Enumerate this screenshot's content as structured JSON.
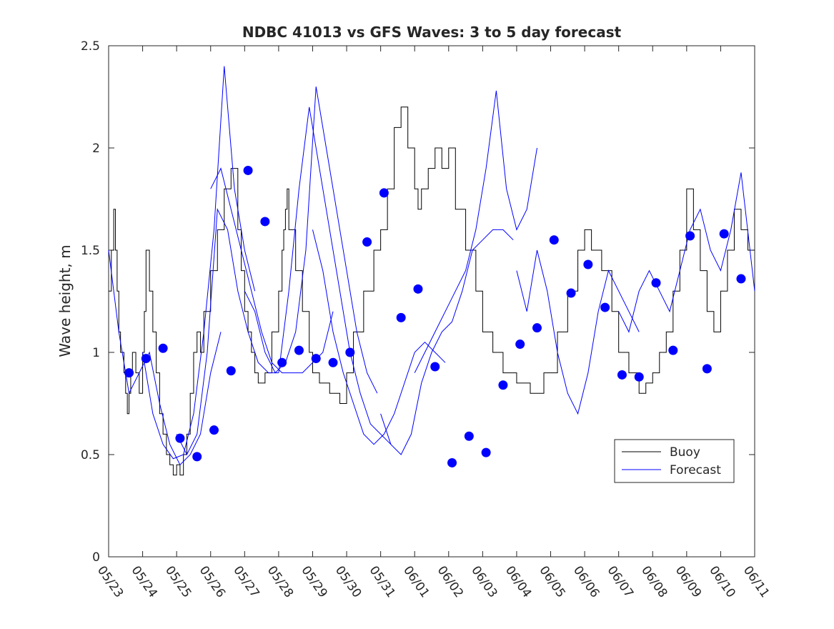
{
  "chart_data": {
    "type": "line",
    "title": "NDBC 41013 vs GFS Waves: 3 to 5 day forecast",
    "xlabel": "",
    "ylabel": "Wave height, m",
    "xlim": [
      0,
      19
    ],
    "ylim": [
      0,
      2.5
    ],
    "x_tick_labels": [
      "05/23",
      "05/24",
      "05/25",
      "05/26",
      "05/27",
      "05/28",
      "05/29",
      "05/30",
      "05/31",
      "06/01",
      "06/02",
      "06/03",
      "06/04",
      "06/05",
      "06/06",
      "06/07",
      "06/08",
      "06/09",
      "06/10",
      "06/11"
    ],
    "y_ticks": [
      0,
      0.5,
      1,
      1.5,
      2,
      2.5
    ],
    "y_tick_labels": [
      "0",
      "0.5",
      "1",
      "1.5",
      "2",
      "2.5"
    ],
    "grid": false,
    "legend_position": "lower-right",
    "legend": [
      {
        "label": "Buoy",
        "color": "#000000"
      },
      {
        "label": "Forecast",
        "color": "#0000ff"
      }
    ],
    "colors": {
      "buoy": "#000000",
      "forecast": "#0000ff",
      "markers": "#0000ff"
    },
    "series": [
      {
        "name": "Buoy",
        "style": "step",
        "x": [
          0.0,
          0.08,
          0.15,
          0.2,
          0.25,
          0.3,
          0.35,
          0.45,
          0.5,
          0.55,
          0.6,
          0.65,
          0.7,
          0.8,
          0.9,
          1.0,
          1.05,
          1.1,
          1.2,
          1.3,
          1.4,
          1.5,
          1.6,
          1.7,
          1.8,
          1.9,
          2.0,
          2.1,
          2.2,
          2.3,
          2.4,
          2.5,
          2.6,
          2.7,
          2.8,
          3.0,
          3.2,
          3.4,
          3.6,
          3.8,
          3.9,
          4.0,
          4.1,
          4.2,
          4.3,
          4.4,
          4.6,
          4.8,
          5.0,
          5.1,
          5.15,
          5.2,
          5.25,
          5.3,
          5.5,
          5.7,
          5.9,
          6.0,
          6.2,
          6.5,
          6.8,
          7.0,
          7.2,
          7.5,
          7.8,
          8.0,
          8.2,
          8.4,
          8.6,
          8.8,
          9.0,
          9.1,
          9.2,
          9.4,
          9.6,
          9.8,
          10.0,
          10.2,
          10.5,
          10.8,
          11.0,
          11.3,
          11.6,
          12.0,
          12.4,
          12.8,
          13.2,
          13.5,
          13.8,
          14.0,
          14.2,
          14.5,
          14.8,
          15.0,
          15.3,
          15.6,
          15.8,
          16.0,
          16.2,
          16.4,
          16.6,
          16.8,
          17.0,
          17.2,
          17.4,
          17.6,
          17.8,
          18.0,
          18.2,
          18.4,
          18.6,
          18.8,
          19.0
        ],
        "y": [
          1.3,
          1.5,
          1.7,
          1.5,
          1.3,
          1.1,
          1.0,
          0.9,
          0.8,
          0.7,
          0.8,
          0.9,
          1.0,
          0.9,
          0.8,
          1.0,
          1.2,
          1.5,
          1.3,
          1.1,
          0.9,
          0.7,
          0.6,
          0.5,
          0.45,
          0.4,
          0.45,
          0.4,
          0.5,
          0.6,
          0.8,
          1.0,
          1.1,
          1.0,
          1.2,
          1.4,
          1.6,
          1.8,
          1.9,
          1.6,
          1.4,
          1.2,
          1.1,
          1.0,
          0.9,
          0.85,
          0.9,
          1.1,
          1.3,
          1.5,
          1.6,
          1.7,
          1.8,
          1.6,
          1.4,
          1.2,
          1.0,
          0.9,
          0.85,
          0.8,
          0.75,
          0.9,
          1.1,
          1.3,
          1.5,
          1.6,
          1.8,
          2.1,
          2.2,
          2.0,
          1.8,
          1.7,
          1.8,
          1.9,
          2.0,
          1.9,
          2.0,
          1.7,
          1.5,
          1.3,
          1.1,
          1.0,
          0.9,
          0.85,
          0.8,
          0.9,
          1.1,
          1.3,
          1.5,
          1.6,
          1.5,
          1.4,
          1.2,
          1.0,
          0.9,
          0.8,
          0.85,
          0.9,
          1.0,
          1.1,
          1.3,
          1.5,
          1.8,
          1.6,
          1.4,
          1.2,
          1.1,
          1.3,
          1.5,
          1.7,
          1.6,
          1.5,
          1.5
        ]
      },
      {
        "name": "Forecast",
        "segments": [
          {
            "x": [
              0.0,
              0.3,
              0.6,
              0.9,
              1.2,
              1.5,
              1.8,
              2.1,
              2.4,
              2.7,
              3.0,
              3.3
            ],
            "y": [
              1.5,
              1.1,
              0.8,
              0.9,
              1.0,
              0.75,
              0.55,
              0.45,
              0.5,
              0.6,
              0.9,
              1.1
            ]
          },
          {
            "x": [
              1.0,
              1.3,
              1.6,
              1.9,
              2.2,
              2.5,
              2.8,
              3.1,
              3.4,
              3.7,
              4.0,
              4.3
            ],
            "y": [
              1.0,
              0.7,
              0.55,
              0.48,
              0.5,
              0.7,
              1.1,
              1.6,
              2.4,
              1.8,
              1.5,
              1.3
            ]
          },
          {
            "x": [
              2.0,
              2.3,
              2.6,
              2.9,
              3.2,
              3.5,
              3.8,
              4.1,
              4.4,
              4.7,
              5.0
            ],
            "y": [
              0.6,
              0.5,
              0.6,
              1.0,
              1.7,
              1.6,
              1.3,
              1.1,
              0.95,
              0.9,
              0.9
            ]
          },
          {
            "x": [
              3.0,
              3.3,
              3.6,
              3.9,
              4.2,
              4.5,
              4.8,
              5.1,
              5.4,
              5.7,
              6.0,
              6.3,
              6.6
            ],
            "y": [
              1.8,
              1.9,
              1.7,
              1.5,
              1.3,
              1.1,
              0.95,
              0.9,
              0.9,
              0.9,
              0.95,
              1.0,
              1.2
            ]
          },
          {
            "x": [
              4.0,
              4.3,
              4.6,
              4.9,
              5.2,
              5.5,
              5.8,
              6.1,
              6.4,
              6.7,
              7.0,
              7.3,
              7.6,
              7.9
            ],
            "y": [
              1.3,
              1.2,
              1.0,
              0.9,
              0.95,
              1.1,
              1.5,
              2.3,
              2.0,
              1.7,
              1.4,
              1.1,
              0.9,
              0.8
            ]
          },
          {
            "x": [
              5.0,
              5.3,
              5.6,
              5.9,
              6.2,
              6.5,
              6.8,
              7.1,
              7.4,
              7.7,
              8.0,
              8.3
            ],
            "y": [
              0.9,
              1.3,
              1.8,
              2.2,
              1.9,
              1.6,
              1.3,
              1.0,
              0.8,
              0.65,
              0.6,
              0.55
            ]
          },
          {
            "x": [
              6.0,
              6.3,
              6.6,
              6.9,
              7.2,
              7.5,
              7.8,
              8.1,
              8.4,
              8.7,
              9.0,
              9.3,
              9.6,
              9.9
            ],
            "y": [
              1.6,
              1.4,
              1.1,
              0.9,
              0.75,
              0.6,
              0.55,
              0.6,
              0.7,
              0.85,
              1.0,
              1.05,
              1.0,
              0.95
            ]
          },
          {
            "x": [
              8.0,
              8.3,
              8.6,
              8.9,
              9.2,
              9.5,
              9.8,
              10.1,
              10.4,
              10.7,
              11.0,
              11.3,
              11.6,
              11.9
            ],
            "y": [
              0.7,
              0.55,
              0.5,
              0.6,
              0.85,
              1.0,
              1.1,
              1.15,
              1.3,
              1.5,
              1.55,
              1.6,
              1.6,
              1.55
            ]
          },
          {
            "x": [
              9.0,
              9.3,
              9.6,
              9.9,
              10.2,
              10.5,
              10.8,
              11.1,
              11.4,
              11.7,
              12.0,
              12.3,
              12.6
            ],
            "y": [
              0.9,
              1.0,
              1.1,
              1.2,
              1.3,
              1.4,
              1.6,
              1.9,
              2.28,
              1.8,
              1.6,
              1.7,
              2.0
            ]
          },
          {
            "x": [
              12.0,
              12.3,
              12.6,
              12.9,
              13.2,
              13.5,
              13.8,
              14.1,
              14.4,
              14.7,
              15.0,
              15.3,
              15.6
            ],
            "y": [
              1.4,
              1.2,
              1.5,
              1.3,
              1.0,
              0.8,
              0.7,
              0.9,
              1.2,
              1.4,
              1.3,
              1.2,
              1.1
            ]
          },
          {
            "x": [
              15.0,
              15.3,
              15.6,
              15.9,
              16.2,
              16.5,
              16.8,
              17.1,
              17.4,
              17.7,
              18.0,
              18.3,
              18.6,
              19.0
            ],
            "y": [
              1.2,
              1.1,
              1.3,
              1.4,
              1.3,
              1.2,
              1.4,
              1.6,
              1.7,
              1.5,
              1.4,
              1.6,
              1.88,
              1.3
            ]
          }
        ]
      },
      {
        "name": "",
        "style": "markers",
        "x": [
          0.6,
          1.1,
          1.6,
          2.1,
          2.6,
          3.1,
          3.6,
          4.1,
          4.6,
          5.1,
          5.6,
          6.1,
          6.6,
          7.1,
          7.6,
          8.1,
          8.6,
          9.1,
          9.6,
          10.1,
          10.6,
          11.1,
          11.6,
          12.1,
          12.6,
          13.1,
          13.6,
          14.1,
          14.6,
          15.1,
          15.6,
          16.1,
          16.6,
          17.1,
          17.6,
          18.1,
          18.6
        ],
        "y": [
          0.9,
          0.97,
          1.02,
          0.58,
          0.49,
          0.62,
          0.91,
          1.89,
          1.64,
          0.95,
          1.01,
          0.97,
          0.95,
          1.0,
          1.54,
          1.78,
          1.17,
          1.31,
          0.93,
          0.46,
          0.59,
          0.51,
          0.84,
          1.04,
          1.12,
          1.55,
          1.29,
          1.43,
          1.22,
          0.89,
          0.88,
          1.34,
          1.01,
          1.57,
          0.92,
          1.58,
          1.36
        ]
      }
    ]
  }
}
